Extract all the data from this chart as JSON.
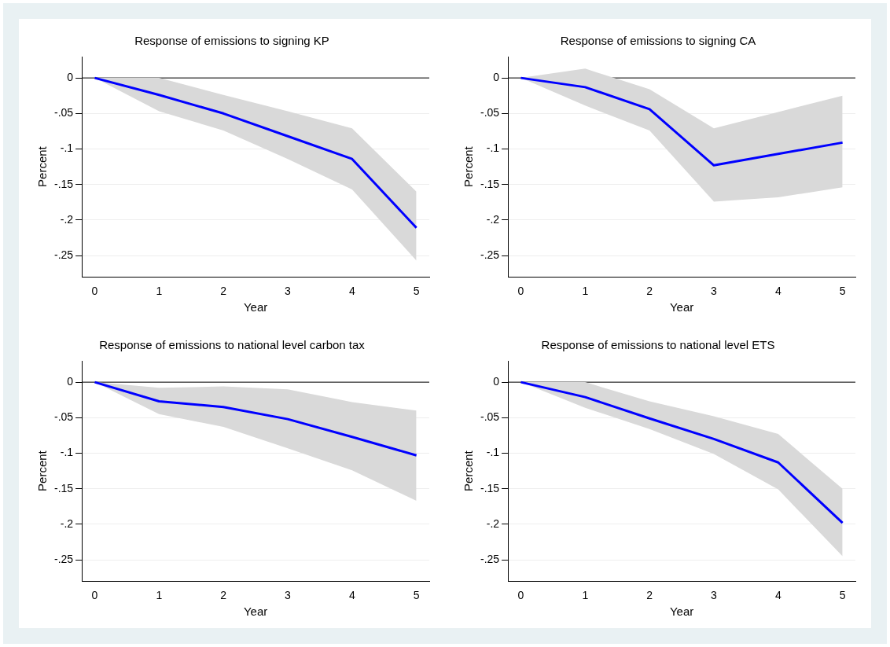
{
  "chart_data": [
    {
      "type": "line",
      "title": "Response of emissions to signing KP",
      "xlabel": "Year",
      "ylabel": "Percent",
      "x": [
        0,
        1,
        2,
        3,
        4,
        5
      ],
      "xlim": [
        -0.2,
        5.2
      ],
      "xticks": [
        0,
        1,
        2,
        3,
        4,
        5
      ],
      "ylim": [
        -0.28,
        0.03
      ],
      "yticks": [
        {
          "value": 0,
          "label": "0"
        },
        {
          "value": -0.05,
          "label": "-.05"
        },
        {
          "value": -0.1,
          "label": "-.1"
        },
        {
          "value": -0.15,
          "label": "-.15"
        },
        {
          "value": -0.2,
          "label": "-.2"
        },
        {
          "value": -0.25,
          "label": "-.25"
        }
      ],
      "grid": "y",
      "ref_lines": [
        {
          "axis": "y",
          "value": 0,
          "color": "#000000"
        }
      ],
      "series": [
        {
          "color": "#0000ff",
          "values": [
            0,
            -0.024,
            -0.05,
            -0.082,
            -0.114,
            -0.211
          ],
          "lower": [
            0,
            -0.047,
            -0.074,
            -0.114,
            -0.157,
            -0.257
          ],
          "upper": [
            0,
            0,
            -0.024,
            -0.047,
            -0.071,
            -0.16
          ]
        }
      ]
    },
    {
      "type": "line",
      "title": "Response of emissions to signing CA",
      "xlabel": "Year",
      "ylabel": "Percent",
      "x": [
        0,
        1,
        2,
        3,
        4,
        5
      ],
      "xlim": [
        -0.2,
        5.2
      ],
      "xticks": [
        0,
        1,
        2,
        3,
        4,
        5
      ],
      "ylim": [
        -0.28,
        0.03
      ],
      "yticks": [
        {
          "value": 0,
          "label": "0"
        },
        {
          "value": -0.05,
          "label": "-.05"
        },
        {
          "value": -0.1,
          "label": "-.1"
        },
        {
          "value": -0.15,
          "label": "-.15"
        },
        {
          "value": -0.2,
          "label": "-.2"
        },
        {
          "value": -0.25,
          "label": "-.25"
        }
      ],
      "grid": "y",
      "ref_lines": [
        {
          "axis": "y",
          "value": 0,
          "color": "#000000"
        }
      ],
      "series": [
        {
          "color": "#0000ff",
          "values": [
            0,
            -0.013,
            -0.044,
            -0.123,
            -0.107,
            -0.091
          ],
          "lower": [
            0,
            -0.039,
            -0.074,
            -0.174,
            -0.168,
            -0.154
          ],
          "upper": [
            0,
            0.013,
            -0.016,
            -0.071,
            -0.048,
            -0.025
          ]
        }
      ]
    },
    {
      "type": "line",
      "title": "Response of emissions to national level carbon tax",
      "xlabel": "Year",
      "ylabel": "Percent",
      "x": [
        0,
        1,
        2,
        3,
        4,
        5
      ],
      "xlim": [
        -0.2,
        5.2
      ],
      "xticks": [
        0,
        1,
        2,
        3,
        4,
        5
      ],
      "ylim": [
        -0.28,
        0.03
      ],
      "yticks": [
        {
          "value": 0,
          "label": "0"
        },
        {
          "value": -0.05,
          "label": "-.05"
        },
        {
          "value": -0.1,
          "label": "-.1"
        },
        {
          "value": -0.15,
          "label": "-.15"
        },
        {
          "value": -0.2,
          "label": "-.2"
        },
        {
          "value": -0.25,
          "label": "-.25"
        }
      ],
      "grid": "y",
      "ref_lines": [
        {
          "axis": "y",
          "value": 0,
          "color": "#000000"
        }
      ],
      "series": [
        {
          "color": "#0000ff",
          "values": [
            0,
            -0.027,
            -0.035,
            -0.052,
            -0.077,
            -0.103
          ],
          "lower": [
            0,
            -0.045,
            -0.063,
            -0.093,
            -0.124,
            -0.167
          ],
          "upper": [
            0,
            -0.008,
            -0.006,
            -0.01,
            -0.028,
            -0.04
          ]
        }
      ]
    },
    {
      "type": "line",
      "title": "Response of emissions to national level ETS",
      "xlabel": "Year",
      "ylabel": "Percent",
      "x": [
        0,
        1,
        2,
        3,
        4,
        5
      ],
      "xlim": [
        -0.2,
        5.2
      ],
      "xticks": [
        0,
        1,
        2,
        3,
        4,
        5
      ],
      "ylim": [
        -0.28,
        0.03
      ],
      "yticks": [
        {
          "value": 0,
          "label": "0"
        },
        {
          "value": -0.05,
          "label": "-.05"
        },
        {
          "value": -0.1,
          "label": "-.1"
        },
        {
          "value": -0.15,
          "label": "-.15"
        },
        {
          "value": -0.2,
          "label": "-.2"
        },
        {
          "value": -0.25,
          "label": "-.25"
        }
      ],
      "grid": "y",
      "ref_lines": [
        {
          "axis": "y",
          "value": 0,
          "color": "#000000"
        }
      ],
      "series": [
        {
          "color": "#0000ff",
          "values": [
            0,
            -0.021,
            -0.051,
            -0.08,
            -0.113,
            -0.198
          ],
          "lower": [
            0,
            -0.036,
            -0.066,
            -0.101,
            -0.151,
            -0.245
          ],
          "upper": [
            0,
            0,
            -0.027,
            -0.048,
            -0.073,
            -0.15
          ]
        }
      ]
    }
  ]
}
